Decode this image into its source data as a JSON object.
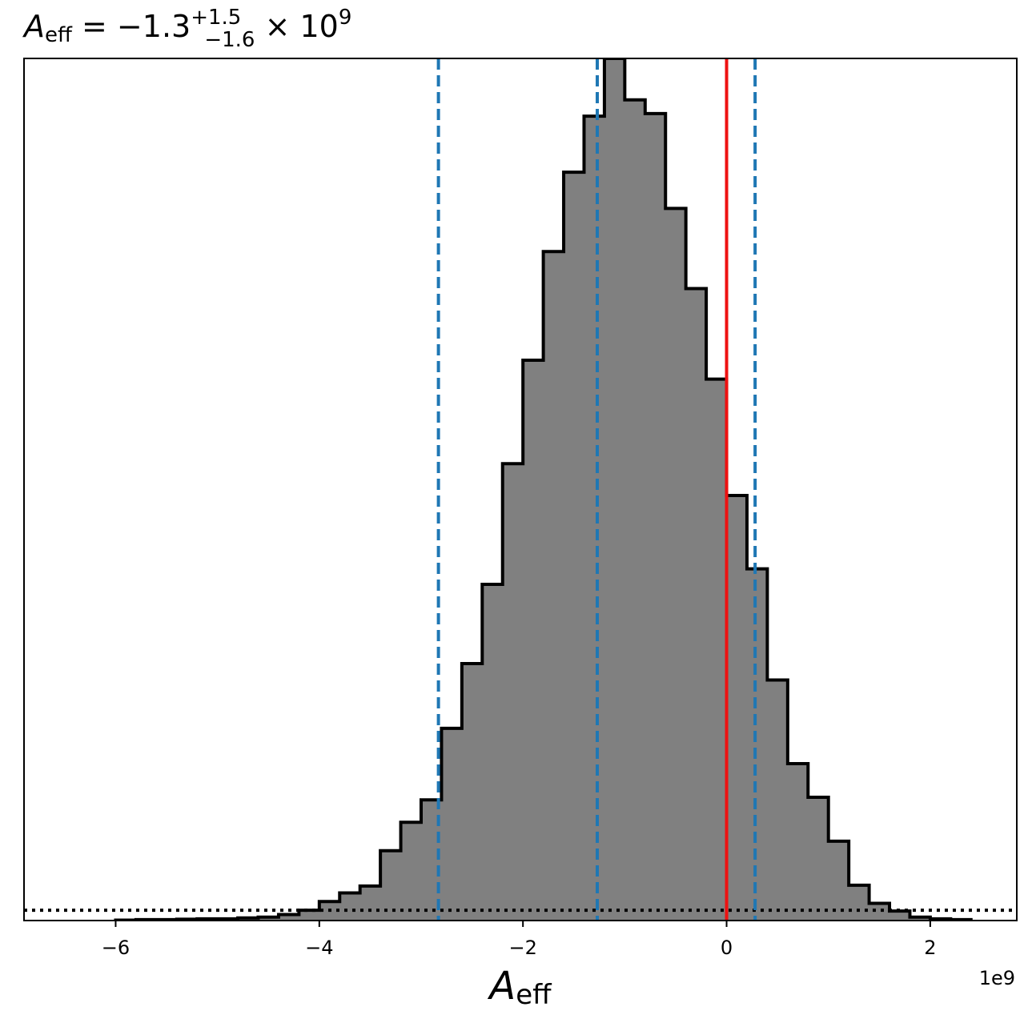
{
  "title": {
    "var": "A",
    "var_sub": "eff",
    "equals": " = ",
    "value": "−1.3",
    "sup": "+1.5",
    "sub": "−1.6",
    "times": " × 10",
    "exp": "9"
  },
  "chart_data": {
    "type": "histogram",
    "xlabel": {
      "var": "A",
      "sub": "eff"
    },
    "offset_text": "1e9",
    "xlim": [
      -6.9,
      2.85
    ],
    "ylim": [
      0,
      1.0
    ],
    "xticks": [
      -6,
      -4,
      -2,
      0,
      2
    ],
    "xtick_labels": [
      "−6",
      "−4",
      "−2",
      "0",
      "2"
    ],
    "bin_edges": [
      -6.0,
      -5.8,
      -5.6,
      -5.4,
      -5.2,
      -5.0,
      -4.8,
      -4.6,
      -4.4,
      -4.2,
      -4.0,
      -3.8,
      -3.6,
      -3.4,
      -3.2,
      -3.0,
      -2.8,
      -2.6,
      -2.4,
      -2.2,
      -2.0,
      -1.8,
      -1.6,
      -1.4,
      -1.2,
      -1.0,
      -0.8,
      -0.6,
      -0.4,
      -0.2,
      0.0,
      0.2,
      0.4,
      0.6,
      0.8,
      1.0,
      1.2,
      1.4,
      1.6,
      1.8,
      2.0,
      2.2,
      2.4
    ],
    "counts": [
      0.0005,
      0.001,
      0.001,
      0.0015,
      0.002,
      0.002,
      0.003,
      0.004,
      0.007,
      0.012,
      0.022,
      0.032,
      0.04,
      0.081,
      0.114,
      0.14,
      0.223,
      0.298,
      0.39,
      0.53,
      0.65,
      0.776,
      0.868,
      0.933,
      1.0,
      0.952,
      0.936,
      0.826,
      0.733,
      0.628,
      0.493,
      0.408,
      0.279,
      0.182,
      0.143,
      0.092,
      0.041,
      0.02,
      0.011,
      0.004,
      0.002,
      0.001
    ],
    "bar_color": "#808080",
    "edge_color": "#000000",
    "median": -1.27,
    "quantile_lines": [
      -2.83,
      0.28
    ],
    "quantile_color": "#1f77b4",
    "truth_value": 0.0,
    "truth_color": "#ee1111",
    "baseline_level": 0.012
  }
}
